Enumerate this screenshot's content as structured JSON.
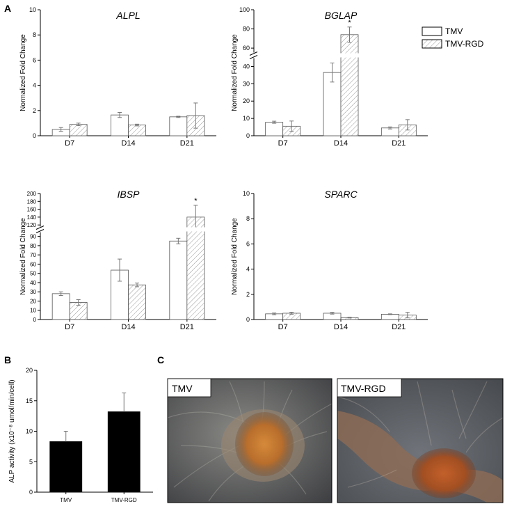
{
  "panels": {
    "a": "A",
    "b": "B",
    "c": "C"
  },
  "legend": {
    "items": [
      "TMV",
      "TMV-RGD"
    ]
  },
  "chart_data": [
    {
      "id": "alpl",
      "type": "bar",
      "title": "ALPL",
      "ylabel": "Normalized Fold Change",
      "xlabel": "",
      "ylim": [
        0,
        10
      ],
      "yticks": [
        0,
        2,
        4,
        6,
        8,
        10
      ],
      "categories": [
        "D7",
        "D14",
        "D21"
      ],
      "series": [
        {
          "name": "TMV",
          "values": [
            0.5,
            1.65,
            1.5
          ],
          "errors": [
            0.15,
            0.2,
            0.05
          ]
        },
        {
          "name": "TMV-RGD",
          "values": [
            0.9,
            0.85,
            1.6
          ],
          "errors": [
            0.1,
            0.07,
            1.0
          ]
        }
      ],
      "annotations": []
    },
    {
      "id": "bglap",
      "type": "bar",
      "title": "BGLAP",
      "ylabel": "Normalized Fold Change",
      "xlabel": "",
      "ylim": [
        0,
        100
      ],
      "axis_break": [
        45,
        55
      ],
      "yticks": [
        0,
        10,
        20,
        30,
        40,
        60,
        80,
        100
      ],
      "categories": [
        "D7",
        "D14",
        "D21"
      ],
      "series": [
        {
          "name": "TMV",
          "values": [
            7.8,
            36.5,
            4.5
          ],
          "errors": [
            0.6,
            5.5,
            0.6
          ]
        },
        {
          "name": "TMV-RGD",
          "values": [
            5.5,
            74,
            6.3
          ],
          "errors": [
            3,
            8,
            3
          ]
        }
      ],
      "annotations": [
        {
          "text": "*",
          "category": "D14",
          "series": "TMV-RGD"
        }
      ]
    },
    {
      "id": "ibsp",
      "type": "bar",
      "title": "IBSP",
      "ylabel": "Normalized Fold Change",
      "xlabel": "",
      "ylim": [
        0,
        200
      ],
      "axis_break": [
        95,
        115
      ],
      "yticks": [
        0,
        10,
        20,
        30,
        40,
        50,
        60,
        70,
        80,
        90,
        120,
        140,
        160,
        180,
        200
      ],
      "categories": [
        "D7",
        "D14",
        "D21"
      ],
      "series": [
        {
          "name": "TMV",
          "values": [
            28,
            53.5,
            85
          ],
          "errors": [
            2,
            12,
            3
          ]
        },
        {
          "name": "TMV-RGD",
          "values": [
            18.5,
            37.5,
            140
          ],
          "errors": [
            3,
            2,
            30
          ]
        }
      ],
      "annotations": [
        {
          "text": "*",
          "category": "D21",
          "series": "TMV-RGD"
        }
      ]
    },
    {
      "id": "sparc",
      "type": "bar",
      "title": "SPARC",
      "ylabel": "Normalized Fold Change",
      "xlabel": "",
      "ylim": [
        0,
        10
      ],
      "yticks": [
        0,
        2,
        4,
        6,
        8,
        10
      ],
      "categories": [
        "D7",
        "D14",
        "D21"
      ],
      "series": [
        {
          "name": "TMV",
          "values": [
            0.45,
            0.5,
            0.42
          ],
          "errors": [
            0.07,
            0.07,
            0.03
          ]
        },
        {
          "name": "TMV-RGD",
          "values": [
            0.5,
            0.15,
            0.35
          ],
          "errors": [
            0.08,
            0.03,
            0.22
          ]
        }
      ],
      "annotations": []
    },
    {
      "id": "alp",
      "type": "bar",
      "title": "",
      "ylabel": "ALP activity (x10⁻⁸ umol/min/cell)",
      "xlabel": "",
      "ylim": [
        0,
        20
      ],
      "yticks": [
        0,
        5,
        10,
        15,
        20
      ],
      "categories": [
        "TMV",
        "TMV-RGD"
      ],
      "series": [
        {
          "name": "",
          "values": [
            8.3,
            13.2
          ],
          "errors": [
            1.7,
            3.1
          ]
        }
      ],
      "annotations": []
    }
  ],
  "images": [
    {
      "label": "TMV",
      "description_icon": "micrograph-icon"
    },
    {
      "label": "TMV-RGD",
      "description_icon": "micrograph-icon"
    }
  ]
}
